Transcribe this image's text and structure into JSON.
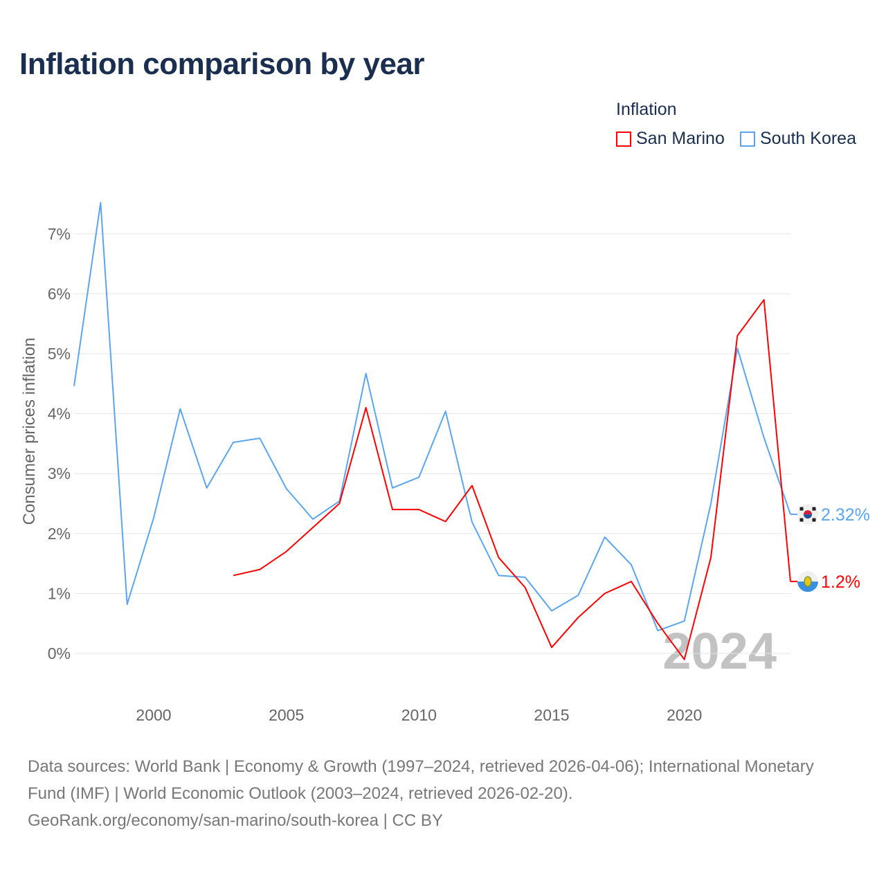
{
  "title": "Inflation comparison by year",
  "legend": {
    "title": "Inflation"
  },
  "watermark_year": "2024",
  "sources": {
    "line1": "Data sources: World Bank | Economy & Growth (1997–2024, retrieved 2026-04-06); International Monetary Fund (IMF) | World Economic Outlook (2003–2024, retrieved 2026-02-20).",
    "line2": "GeoRank.org/economy/san-marino/south-korea | CC BY"
  },
  "chart_data": {
    "type": "line",
    "title": "Inflation comparison by year",
    "xlabel": "",
    "ylabel": "Consumer prices inflation",
    "xlim": [
      1997,
      2024
    ],
    "ylim": [
      -0.5,
      7.5
    ],
    "x_ticks": [
      2000,
      2005,
      2010,
      2015,
      2020
    ],
    "x_tick_labels": [
      "2000",
      "2005",
      "2010",
      "2015",
      "2020"
    ],
    "y_ticks": [
      0,
      1,
      2,
      3,
      4,
      5,
      6,
      7
    ],
    "y_tick_labels": [
      "0%",
      "1%",
      "2%",
      "3%",
      "4%",
      "5%",
      "6%",
      "7%"
    ],
    "grid": true,
    "legend_position": "top-right",
    "series": [
      {
        "name": "San Marino",
        "color": "#ff0000",
        "end_label": "1.2%",
        "x": [
          2003,
          2004,
          2005,
          2006,
          2007,
          2008,
          2009,
          2010,
          2011,
          2012,
          2013,
          2014,
          2015,
          2016,
          2017,
          2018,
          2019,
          2020,
          2021,
          2022,
          2023,
          2024
        ],
        "values": [
          1.3,
          1.4,
          1.7,
          2.1,
          2.5,
          4.1,
          2.4,
          2.4,
          2.2,
          2.8,
          1.6,
          1.1,
          0.1,
          0.6,
          1.0,
          1.2,
          0.5,
          -0.1,
          1.6,
          5.3,
          5.9,
          1.2
        ]
      },
      {
        "name": "South Korea",
        "color": "#5aa5ee",
        "end_label": "2.32%",
        "x": [
          1997,
          1998,
          1999,
          2000,
          2001,
          2002,
          2003,
          2004,
          2005,
          2006,
          2007,
          2008,
          2009,
          2010,
          2011,
          2012,
          2013,
          2014,
          2015,
          2016,
          2017,
          2018,
          2019,
          2020,
          2021,
          2022,
          2023,
          2024
        ],
        "values": [
          4.46,
          7.52,
          0.82,
          2.26,
          4.08,
          2.76,
          3.52,
          3.59,
          2.75,
          2.24,
          2.54,
          4.67,
          2.76,
          2.94,
          4.04,
          2.19,
          1.3,
          1.27,
          0.71,
          0.97,
          1.94,
          1.48,
          0.38,
          0.54,
          2.5,
          5.09,
          3.6,
          2.32
        ]
      }
    ]
  }
}
